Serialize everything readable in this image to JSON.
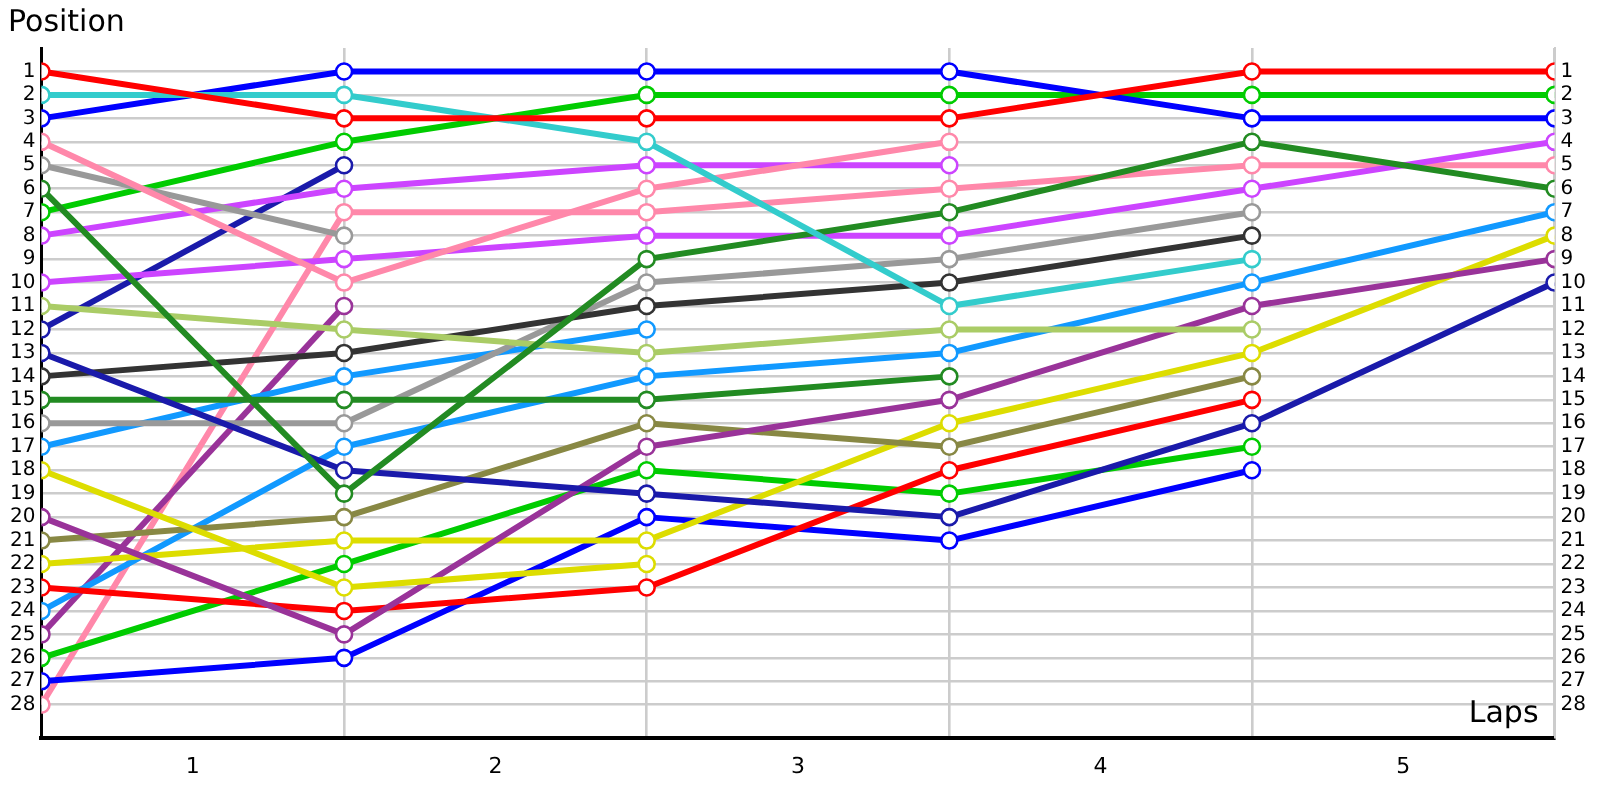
{
  "chart_data": {
    "type": "line",
    "xlabel": "Laps",
    "ylabel": "Position",
    "x": [
      0,
      1,
      2,
      3,
      4,
      5
    ],
    "xlim": [
      0,
      5
    ],
    "xticks": [
      {
        "value": 0,
        "label": null
      },
      {
        "value": 0.5,
        "label": "1"
      },
      {
        "value": 1,
        "label": null
      },
      {
        "value": 1.5,
        "label": "2"
      },
      {
        "value": 2,
        "label": null
      },
      {
        "value": 2.5,
        "label": "3"
      },
      {
        "value": 3,
        "label": null
      },
      {
        "value": 3.5,
        "label": "4"
      },
      {
        "value": 4,
        "label": null
      },
      {
        "value": 4.5,
        "label": "5"
      },
      {
        "value": 5,
        "label": null
      }
    ],
    "ylim": [
      29.4,
      0
    ],
    "yticks": [
      1,
      2,
      3,
      4,
      5,
      6,
      7,
      8,
      9,
      10,
      11,
      12,
      13,
      14,
      15,
      16,
      17,
      18,
      19,
      20,
      21,
      22,
      23,
      24,
      25,
      26,
      27,
      28
    ],
    "y2lim": [
      29.4,
      0
    ],
    "y2ticks": [
      1,
      2,
      3,
      4,
      5,
      6,
      7,
      8,
      9,
      10,
      11,
      12,
      13,
      14,
      15,
      16,
      17,
      18,
      19,
      20,
      21,
      22,
      23,
      24,
      25,
      26,
      27,
      28
    ],
    "grid": true,
    "marker": "circle",
    "line_style": "solid",
    "series": [
      {
        "color": "#ff0000",
        "values": [
          1,
          3,
          3,
          3,
          1,
          1
        ]
      },
      {
        "color": "#33cccc",
        "values": [
          2,
          2,
          4,
          11,
          9,
          null
        ]
      },
      {
        "color": "#0000ff",
        "values": [
          3,
          1,
          1,
          1,
          3,
          3
        ]
      },
      {
        "color": "#ff88aa",
        "values": [
          4,
          10,
          6,
          4,
          null,
          null
        ]
      },
      {
        "color": "#999999",
        "values": [
          5,
          8,
          null,
          null,
          null,
          null
        ]
      },
      {
        "color": "#228b22",
        "values": [
          6,
          19,
          9,
          7,
          4,
          6
        ]
      },
      {
        "color": "#00cc00",
        "values": [
          7,
          4,
          2,
          2,
          2,
          2
        ]
      },
      {
        "color": "#cc44ff",
        "values": [
          8,
          6,
          5,
          5,
          null,
          null
        ]
      },
      {
        "color": "#cc44ff",
        "values": [
          10,
          9,
          8,
          8,
          6,
          4
        ]
      },
      {
        "color": "#aacc66",
        "values": [
          11,
          12,
          13,
          12,
          12,
          null
        ]
      },
      {
        "color": "#1a1aaa",
        "values": [
          12,
          5,
          null,
          null,
          null,
          null
        ]
      },
      {
        "color": "#1a1aaa",
        "values": [
          13,
          18,
          19,
          20,
          16,
          10
        ]
      },
      {
        "color": "#333333",
        "values": [
          14,
          13,
          11,
          10,
          8,
          null
        ]
      },
      {
        "color": "#228b22",
        "values": [
          15,
          15,
          15,
          14,
          null,
          null
        ]
      },
      {
        "color": "#999999",
        "values": [
          16,
          16,
          10,
          9,
          7,
          null
        ]
      },
      {
        "color": "#1199ff",
        "values": [
          17,
          14,
          12,
          null,
          null,
          null
        ]
      },
      {
        "color": "#dddd00",
        "values": [
          18,
          23,
          22,
          null,
          null,
          null
        ]
      },
      {
        "color": "#993399",
        "values": [
          20,
          25,
          17,
          15,
          11,
          9
        ]
      },
      {
        "color": "#888844",
        "values": [
          21,
          20,
          16,
          17,
          14,
          null
        ]
      },
      {
        "color": "#dddd00",
        "values": [
          22,
          21,
          21,
          16,
          13,
          8
        ]
      },
      {
        "color": "#ff0000",
        "values": [
          23,
          24,
          23,
          18,
          15,
          null
        ]
      },
      {
        "color": "#1199ff",
        "values": [
          24,
          17,
          14,
          13,
          10,
          7
        ]
      },
      {
        "color": "#993399",
        "values": [
          25,
          11,
          null,
          null,
          null,
          null
        ]
      },
      {
        "color": "#00cc00",
        "values": [
          26,
          22,
          18,
          19,
          17,
          null
        ]
      },
      {
        "color": "#0000ff",
        "values": [
          27,
          26,
          20,
          21,
          18,
          null
        ]
      },
      {
        "color": "#ff88aa",
        "values": [
          28,
          7,
          7,
          6,
          5,
          5
        ]
      }
    ]
  }
}
